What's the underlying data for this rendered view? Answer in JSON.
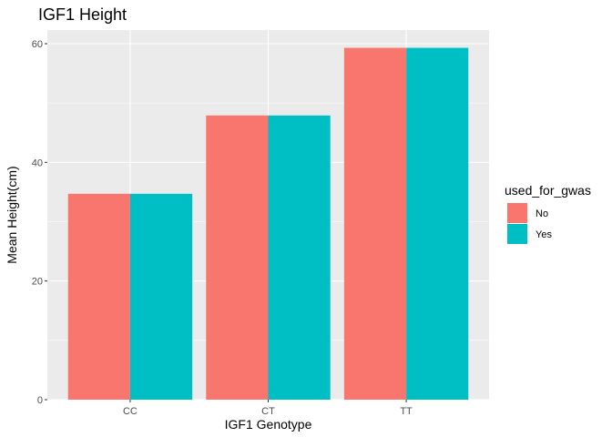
{
  "chart_data": {
    "type": "bar",
    "title": "IGF1 Height",
    "xlabel": "IGF1 Genotype",
    "ylabel": "Mean Height(cm)",
    "categories": [
      "CC",
      "CT",
      "TT"
    ],
    "series": [
      {
        "name": "No",
        "values": [
          34.7,
          47.9,
          59.3
        ],
        "color": "#F8766D"
      },
      {
        "name": "Yes",
        "values": [
          34.7,
          47.9,
          59.3
        ],
        "color": "#00BFC4"
      }
    ],
    "ylim": [
      0,
      62.3
    ],
    "yticks": [
      0,
      20,
      40,
      60
    ],
    "grid": true,
    "panel_background": "#EBEBEB",
    "legend": {
      "title": "used_for_gwas",
      "position": "right"
    }
  }
}
